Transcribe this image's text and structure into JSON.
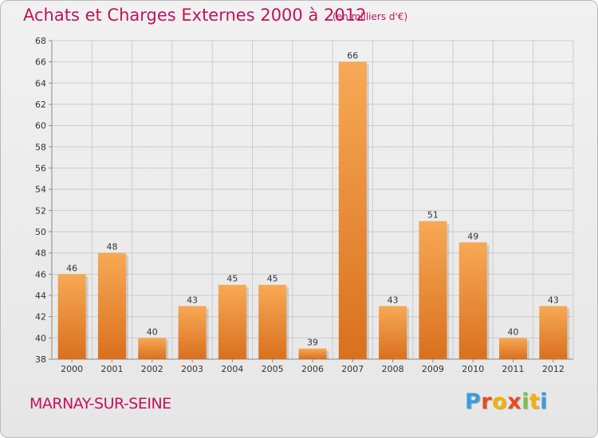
{
  "header": {
    "title": "Achats et Charges Externes 2000 à 2012",
    "unit": "(en milliers d'€)"
  },
  "footer": {
    "place": "MARNAY-SUR-SEINE",
    "logo": [
      "P",
      "r",
      "o",
      "x",
      "i",
      "t",
      "i"
    ]
  },
  "colors": {
    "title": "#c1135b",
    "bar_light": "#f7a955",
    "bar_dark": "#d9701e",
    "grid": "#cccccc",
    "logo": [
      "#3b9be0",
      "#e84c1e",
      "#f2b200",
      "#e84c1e",
      "#7cc242",
      "#f2b200",
      "#3b9be0"
    ]
  },
  "chart_data": {
    "type": "bar",
    "title": "Achats et Charges Externes 2000 à 2012",
    "subtitle": "(en milliers d'€)",
    "categories": [
      "2000",
      "2001",
      "2002",
      "2003",
      "2004",
      "2005",
      "2006",
      "2007",
      "2008",
      "2009",
      "2010",
      "2011",
      "2012"
    ],
    "values": [
      46,
      48,
      40,
      43,
      45,
      45,
      39,
      66,
      43,
      51,
      49,
      40,
      43
    ],
    "ylim": [
      38,
      68
    ],
    "yticks": [
      38,
      40,
      42,
      44,
      46,
      48,
      50,
      52,
      54,
      56,
      58,
      60,
      62,
      64,
      66,
      68
    ],
    "grid": true,
    "legend": "none"
  }
}
